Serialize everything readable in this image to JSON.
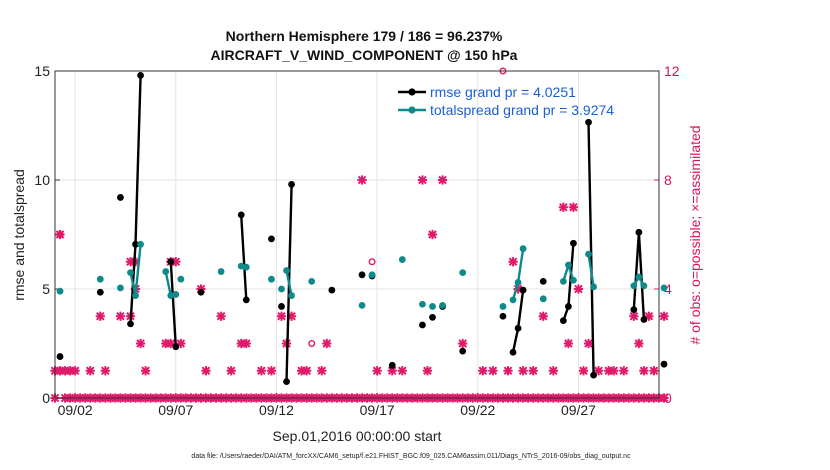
{
  "chart_data": {
    "type": "line",
    "title": "Northern Hemisphere 179 / 186 = 96.237%",
    "subtitle": "AIRCRAFT_V_WIND_COMPONENT @ 150 hPa",
    "xlabel": "Sep.01,2016 00:00:00 start",
    "ylabel": "rmse and totalspread",
    "y2label": "# of obs: o=possible; ×=assimilated",
    "xlim": [
      1,
      31
    ],
    "ylim": [
      0,
      15
    ],
    "y2lim": [
      0,
      12
    ],
    "x_ticks": [
      2,
      7,
      12,
      17,
      22,
      27
    ],
    "x_tick_labels": [
      "09/02",
      "09/07",
      "09/12",
      "09/17",
      "09/22",
      "09/27"
    ],
    "y_ticks": [
      0,
      5,
      10,
      15
    ],
    "y_tick_labels": [
      "0",
      "5",
      "10",
      "15"
    ],
    "y2_ticks": [
      0,
      4,
      8,
      12
    ],
    "y2_tick_labels": [
      "0",
      "4",
      "8",
      "12"
    ],
    "grid": true,
    "legend_position": "top-right",
    "series": [
      {
        "name": "rmse",
        "legend": "rmse grand pr = 4.0251",
        "color": "#000000",
        "points": [
          [
            1.25,
            1.9
          ],
          [
            3.25,
            4.85
          ],
          [
            4.25,
            9.2
          ],
          [
            4.75,
            3.4
          ],
          [
            5.0,
            7.05
          ],
          [
            5.25,
            14.8
          ],
          [
            6.75,
            6.25
          ],
          [
            7.0,
            2.35
          ],
          [
            8.25,
            4.85
          ],
          [
            10.25,
            8.4
          ],
          [
            10.5,
            4.5
          ],
          [
            11.75,
            7.3
          ],
          [
            12.25,
            4.2
          ],
          [
            12.5,
            0.75
          ],
          [
            12.75,
            9.8
          ],
          [
            14.75,
            4.95
          ],
          [
            16.25,
            5.65
          ],
          [
            16.75,
            5.6
          ],
          [
            17.75,
            1.5
          ],
          [
            19.25,
            3.35
          ],
          [
            19.75,
            3.7
          ],
          [
            20.25,
            4.2
          ],
          [
            21.25,
            2.15
          ],
          [
            23.25,
            3.75
          ],
          [
            23.75,
            2.1
          ],
          [
            24.0,
            3.2
          ],
          [
            24.25,
            4.95
          ],
          [
            25.25,
            5.35
          ],
          [
            26.25,
            3.55
          ],
          [
            26.5,
            4.2
          ],
          [
            26.75,
            7.1
          ],
          [
            27.5,
            12.65
          ],
          [
            27.75,
            1.05
          ],
          [
            29.75,
            4.05
          ],
          [
            30.0,
            7.6
          ],
          [
            30.25,
            3.6
          ],
          [
            31.25,
            1.55
          ]
        ],
        "segments": [
          [
            [
              4.75,
              3.4
            ],
            [
              5.0,
              7.05
            ],
            [
              5.25,
              14.8
            ]
          ],
          [
            [
              6.75,
              6.25
            ],
            [
              7.0,
              2.35
            ]
          ],
          [
            [
              10.25,
              8.4
            ],
            [
              10.5,
              4.5
            ]
          ],
          [
            [
              12.5,
              0.75
            ],
            [
              12.75,
              9.8
            ]
          ],
          [
            [
              23.75,
              2.1
            ],
            [
              24.0,
              3.2
            ],
            [
              24.25,
              4.95
            ]
          ],
          [
            [
              26.25,
              3.55
            ],
            [
              26.5,
              4.2
            ],
            [
              26.75,
              7.1
            ]
          ],
          [
            [
              27.5,
              12.65
            ],
            [
              27.75,
              1.05
            ]
          ],
          [
            [
              29.75,
              4.05
            ],
            [
              30.0,
              7.6
            ],
            [
              30.25,
              3.6
            ]
          ]
        ]
      },
      {
        "name": "totalspread",
        "legend": "totalspread grand pr = 3.9274",
        "color": "#0e8a8a",
        "points": [
          [
            1.25,
            4.9
          ],
          [
            3.25,
            5.45
          ],
          [
            4.25,
            5.05
          ],
          [
            4.75,
            5.75
          ],
          [
            5.0,
            4.7
          ],
          [
            5.25,
            7.05
          ],
          [
            6.5,
            5.8
          ],
          [
            6.75,
            4.7
          ],
          [
            7.0,
            4.75
          ],
          [
            7.25,
            5.45
          ],
          [
            9.25,
            5.8
          ],
          [
            10.25,
            6.05
          ],
          [
            10.5,
            6.0
          ],
          [
            11.75,
            5.45
          ],
          [
            12.25,
            5.0
          ],
          [
            12.5,
            5.85
          ],
          [
            12.75,
            4.7
          ],
          [
            13.75,
            5.35
          ],
          [
            16.25,
            4.25
          ],
          [
            16.75,
            5.65
          ],
          [
            18.25,
            6.35
          ],
          [
            19.25,
            4.3
          ],
          [
            19.75,
            4.2
          ],
          [
            20.25,
            4.25
          ],
          [
            21.25,
            5.75
          ],
          [
            23.25,
            4.2
          ],
          [
            23.75,
            4.5
          ],
          [
            24.0,
            5.3
          ],
          [
            24.25,
            6.85
          ],
          [
            25.25,
            4.55
          ],
          [
            26.25,
            5.35
          ],
          [
            26.5,
            6.1
          ],
          [
            26.75,
            5.4
          ],
          [
            27.5,
            6.6
          ],
          [
            27.75,
            5.1
          ],
          [
            29.75,
            5.15
          ],
          [
            30.0,
            5.55
          ],
          [
            30.25,
            5.15
          ],
          [
            31.25,
            5.05
          ]
        ],
        "segments": [
          [
            [
              4.75,
              5.75
            ],
            [
              5.0,
              4.7
            ],
            [
              5.25,
              7.05
            ]
          ],
          [
            [
              6.5,
              5.8
            ],
            [
              6.75,
              4.7
            ],
            [
              7.0,
              4.75
            ]
          ],
          [
            [
              10.25,
              6.05
            ],
            [
              10.5,
              6.0
            ]
          ],
          [
            [
              12.5,
              5.85
            ],
            [
              12.75,
              4.7
            ]
          ],
          [
            [
              23.75,
              4.5
            ],
            [
              24.0,
              5.3
            ],
            [
              24.25,
              6.85
            ]
          ],
          [
            [
              26.25,
              5.35
            ],
            [
              26.5,
              6.1
            ],
            [
              26.75,
              5.4
            ]
          ],
          [
            [
              27.5,
              6.6
            ],
            [
              27.75,
              5.1
            ]
          ],
          [
            [
              29.75,
              5.15
            ],
            [
              30.0,
              5.55
            ],
            [
              30.25,
              5.15
            ]
          ]
        ]
      }
    ],
    "obs_possible": [
      [
        1.25,
        6
      ],
      [
        13.75,
        2
      ],
      [
        16.75,
        5
      ],
      [
        23.25,
        12
      ]
    ],
    "obs_assimilated": [
      [
        1.0,
        0
      ],
      [
        1.25,
        6
      ],
      [
        1.5,
        0
      ],
      [
        1.75,
        0
      ],
      [
        2.0,
        0
      ],
      [
        2.25,
        0
      ],
      [
        2.5,
        0
      ],
      [
        2.75,
        0
      ],
      [
        3.0,
        0
      ],
      [
        3.25,
        0
      ],
      [
        3.5,
        0
      ],
      [
        3.75,
        0
      ],
      [
        4.0,
        0
      ],
      [
        4.25,
        0
      ],
      [
        4.5,
        0
      ],
      [
        4.75,
        0
      ],
      [
        5.0,
        0
      ],
      [
        5.25,
        0
      ],
      [
        5.5,
        0
      ],
      [
        5.75,
        0
      ],
      [
        6.0,
        0
      ],
      [
        6.25,
        0
      ],
      [
        6.5,
        0
      ],
      [
        6.75,
        0
      ],
      [
        7.0,
        0
      ],
      [
        7.25,
        0
      ],
      [
        7.5,
        0
      ],
      [
        7.75,
        0
      ],
      [
        8.0,
        0
      ],
      [
        8.25,
        0
      ],
      [
        8.5,
        0
      ],
      [
        8.75,
        0
      ],
      [
        9.0,
        0
      ],
      [
        9.25,
        0
      ],
      [
        9.5,
        0
      ],
      [
        9.75,
        0
      ],
      [
        10.0,
        0
      ],
      [
        10.25,
        0
      ],
      [
        10.5,
        0
      ],
      [
        10.75,
        0
      ],
      [
        11.0,
        0
      ],
      [
        11.25,
        0
      ],
      [
        11.5,
        0
      ],
      [
        11.75,
        0
      ],
      [
        12.0,
        0
      ],
      [
        12.25,
        0
      ],
      [
        12.5,
        0
      ],
      [
        12.75,
        0
      ],
      [
        13.0,
        0
      ],
      [
        13.25,
        0
      ],
      [
        13.5,
        0
      ],
      [
        13.75,
        0
      ],
      [
        14.0,
        0
      ],
      [
        14.25,
        0
      ],
      [
        14.5,
        0
      ],
      [
        14.75,
        0
      ],
      [
        15.0,
        0
      ],
      [
        15.25,
        0
      ],
      [
        15.5,
        0
      ],
      [
        15.75,
        0
      ],
      [
        16.0,
        0
      ],
      [
        16.25,
        0
      ],
      [
        16.5,
        0
      ],
      [
        16.75,
        0
      ],
      [
        17.0,
        0
      ],
      [
        17.25,
        0
      ],
      [
        17.5,
        0
      ],
      [
        17.75,
        0
      ],
      [
        18.0,
        0
      ],
      [
        18.25,
        0
      ],
      [
        18.5,
        0
      ],
      [
        18.75,
        0
      ],
      [
        19.0,
        0
      ],
      [
        19.25,
        0
      ],
      [
        19.5,
        0
      ],
      [
        19.75,
        0
      ],
      [
        20.0,
        0
      ],
      [
        20.25,
        0
      ],
      [
        20.5,
        0
      ],
      [
        20.75,
        0
      ],
      [
        21.0,
        0
      ],
      [
        21.25,
        0
      ],
      [
        21.5,
        0
      ],
      [
        21.75,
        0
      ],
      [
        22.0,
        0
      ],
      [
        22.25,
        0
      ],
      [
        22.5,
        0
      ],
      [
        22.75,
        0
      ],
      [
        23.0,
        0
      ],
      [
        23.25,
        0
      ],
      [
        23.5,
        0
      ],
      [
        23.75,
        0
      ],
      [
        24.0,
        0
      ],
      [
        24.25,
        0
      ],
      [
        24.5,
        0
      ],
      [
        24.75,
        0
      ],
      [
        25.0,
        0
      ],
      [
        25.25,
        0
      ],
      [
        25.5,
        0
      ],
      [
        25.75,
        0
      ],
      [
        26.0,
        0
      ],
      [
        26.25,
        0
      ],
      [
        26.5,
        0
      ],
      [
        26.75,
        0
      ],
      [
        27.0,
        0
      ],
      [
        27.25,
        0
      ],
      [
        27.5,
        0
      ],
      [
        27.75,
        0
      ],
      [
        28.0,
        0
      ],
      [
        28.25,
        0
      ],
      [
        28.5,
        0
      ],
      [
        28.75,
        0
      ],
      [
        29.0,
        0
      ],
      [
        29.25,
        0
      ],
      [
        29.5,
        0
      ],
      [
        29.75,
        0
      ],
      [
        30.0,
        0
      ],
      [
        30.25,
        0
      ],
      [
        30.5,
        0
      ],
      [
        30.75,
        0
      ],
      [
        31.0,
        0
      ],
      [
        31.25,
        0
      ],
      [
        1.0,
        1
      ],
      [
        1.25,
        1
      ],
      [
        1.5,
        1
      ],
      [
        1.75,
        1
      ],
      [
        2.0,
        1
      ],
      [
        2.75,
        1
      ],
      [
        3.25,
        3
      ],
      [
        3.5,
        1
      ],
      [
        4.25,
        3
      ],
      [
        4.75,
        3
      ],
      [
        4.75,
        5
      ],
      [
        5.0,
        4
      ],
      [
        5.0,
        5
      ],
      [
        5.25,
        2
      ],
      [
        5.5,
        1
      ],
      [
        6.5,
        2
      ],
      [
        6.75,
        2
      ],
      [
        6.75,
        5
      ],
      [
        7.0,
        5
      ],
      [
        7.25,
        2
      ],
      [
        8.25,
        4
      ],
      [
        8.5,
        1
      ],
      [
        9.25,
        3
      ],
      [
        9.75,
        1
      ],
      [
        10.25,
        2
      ],
      [
        10.5,
        2
      ],
      [
        11.25,
        1
      ],
      [
        11.75,
        1
      ],
      [
        12.25,
        3
      ],
      [
        12.5,
        2
      ],
      [
        12.75,
        3
      ],
      [
        13.25,
        1
      ],
      [
        13.5,
        1
      ],
      [
        14.25,
        1
      ],
      [
        14.5,
        2
      ],
      [
        16.25,
        8
      ],
      [
        17.0,
        1
      ],
      [
        17.75,
        1
      ],
      [
        18.25,
        1
      ],
      [
        19.25,
        8
      ],
      [
        19.5,
        1
      ],
      [
        19.75,
        6
      ],
      [
        20.25,
        8
      ],
      [
        21.25,
        2
      ],
      [
        22.25,
        1
      ],
      [
        22.75,
        1
      ],
      [
        23.5,
        1
      ],
      [
        23.75,
        5
      ],
      [
        24.0,
        4
      ],
      [
        24.25,
        1
      ],
      [
        24.75,
        1
      ],
      [
        25.25,
        3
      ],
      [
        25.75,
        1
      ],
      [
        26.25,
        7
      ],
      [
        26.5,
        2
      ],
      [
        26.75,
        7
      ],
      [
        27.0,
        4
      ],
      [
        27.25,
        1
      ],
      [
        27.5,
        2
      ],
      [
        28.0,
        1
      ],
      [
        28.5,
        1
      ],
      [
        28.75,
        1
      ],
      [
        29.25,
        1
      ],
      [
        29.75,
        3
      ],
      [
        30.0,
        2
      ],
      [
        30.25,
        1
      ],
      [
        30.5,
        3
      ],
      [
        30.75,
        1
      ],
      [
        31.25,
        3
      ]
    ],
    "footnote": "data file: /Users/raeder/DAI/ATM_forcXX/CAM6_setup/f.e21.FHIST_BGC.f09_025.CAM6assim.011/Diags_NTrS_2016-09/obs_diag_output.nc"
  }
}
